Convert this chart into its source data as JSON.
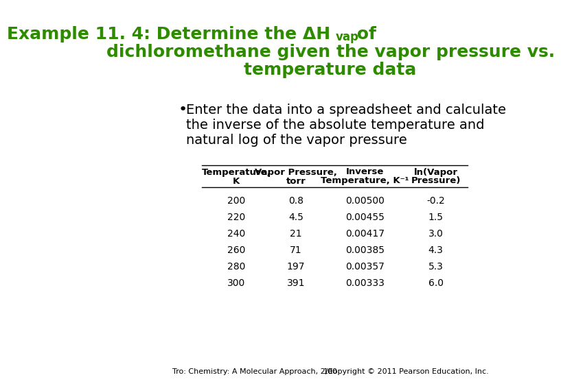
{
  "title_line1": "Example 11. 4: Determine the ΔH",
  "title_vap": "vap",
  "title_line1_suffix": " of",
  "title_line2": "dichloromethane given the vapor pressure vs.",
  "title_line3": "temperature data",
  "title_color": "#2e8b00",
  "bullet_text_line1": "Enter the data into a spreadsheet and calculate",
  "bullet_text_line2": "the inverse of the absolute temperature and",
  "bullet_text_line3": "natural log of the vapor pressure",
  "col_headers": [
    [
      "Temperature,",
      "K"
    ],
    [
      "Vapor Pressure,",
      "torr"
    ],
    [
      "Inverse",
      "Temperature, K⁻¹"
    ],
    [
      "ln(Vapor",
      "Pressure)"
    ]
  ],
  "table_data": [
    [
      200,
      0.8,
      0.005,
      -0.2
    ],
    [
      220,
      4.5,
      0.00455,
      1.5
    ],
    [
      240,
      21,
      0.00417,
      3.0
    ],
    [
      260,
      71,
      0.00385,
      4.3
    ],
    [
      280,
      197,
      0.00357,
      5.3
    ],
    [
      300,
      391,
      0.00333,
      6.0
    ]
  ],
  "footer_left": "Tro: Chemistry: A Molecular Approach, 2/e",
  "footer_center": "100",
  "footer_right": "Copyright © 2011 Pearson Education, Inc.",
  "bg_color": "#ffffff",
  "text_color": "#000000",
  "table_text_color": "#000000"
}
